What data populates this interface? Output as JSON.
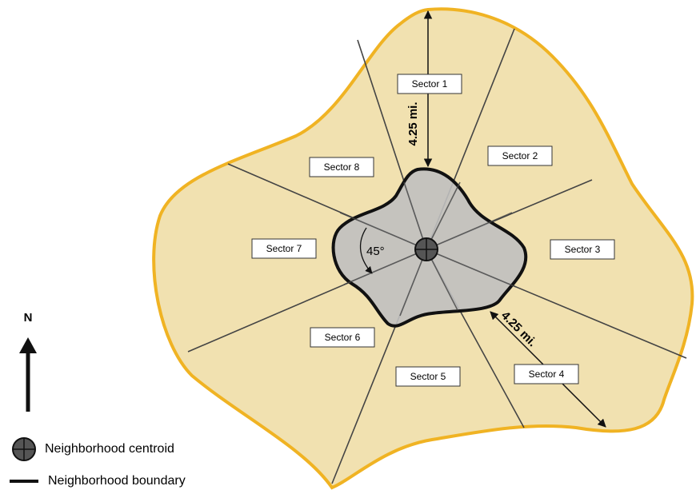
{
  "sectors": [
    "Sector 1",
    "Sector 2",
    "Sector 3",
    "Sector 4",
    "Sector 5",
    "Sector 6",
    "Sector 7",
    "Sector 8"
  ],
  "distance_labels": [
    "4.25 mi.",
    "4.25 mi."
  ],
  "angle_label": "45°",
  "north_label": "N",
  "legend": {
    "centroid": "Neighborhood centroid",
    "boundary": "Neighborhood boundary"
  }
}
